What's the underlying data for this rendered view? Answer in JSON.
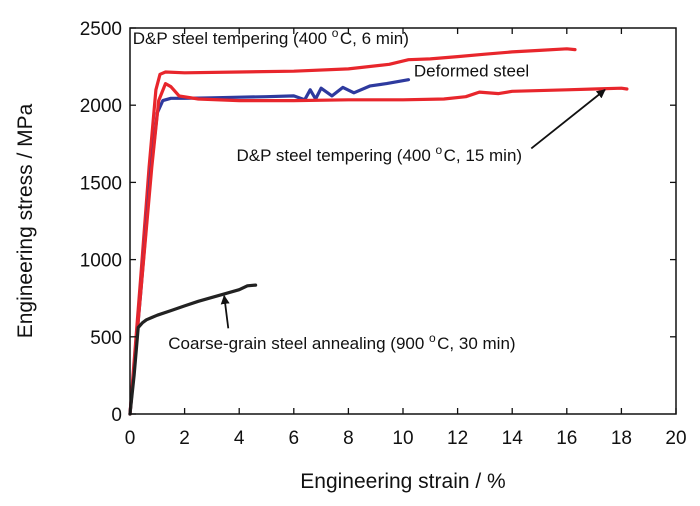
{
  "chart_data": {
    "type": "line",
    "title": "",
    "xlabel": "Engineering strain / %",
    "ylabel": "Engineering stress / MPa",
    "xlim": [
      0,
      20
    ],
    "ylim": [
      0,
      2500
    ],
    "x_ticks": [
      0,
      2,
      4,
      6,
      8,
      10,
      12,
      14,
      16,
      18,
      20
    ],
    "y_ticks": [
      0,
      500,
      1000,
      1500,
      2000,
      2500
    ],
    "grid": false,
    "series": [
      {
        "name": "D&P steel tempering (400 °C, 6 min)",
        "color": "#e8262c",
        "x": [
          0,
          0.4,
          0.7,
          0.95,
          1.1,
          1.3,
          2,
          4,
          6,
          8,
          9.5,
          10.2,
          11,
          12,
          13,
          14,
          15,
          16,
          16.3
        ],
        "y": [
          0,
          900,
          1600,
          2100,
          2200,
          2215,
          2210,
          2215,
          2220,
          2235,
          2265,
          2295,
          2300,
          2315,
          2330,
          2345,
          2355,
          2365,
          2360
        ]
      },
      {
        "name": "Deformed steel",
        "color": "#2e3a9e",
        "x": [
          0,
          0.4,
          0.75,
          1.0,
          1.2,
          1.5,
          2,
          3,
          4,
          5,
          6,
          6.4,
          6.6,
          6.8,
          7.0,
          7.4,
          7.8,
          8.2,
          8.8,
          9.4,
          10.2
        ],
        "y": [
          0,
          800,
          1550,
          1950,
          2030,
          2045,
          2045,
          2048,
          2052,
          2055,
          2060,
          2035,
          2100,
          2040,
          2110,
          2060,
          2115,
          2080,
          2125,
          2140,
          2165
        ]
      },
      {
        "name": "D&P steel tempering (400 °C, 15 min)",
        "color": "#e8262c",
        "x": [
          0,
          0.4,
          0.8,
          1.05,
          1.3,
          1.5,
          1.8,
          2.5,
          4,
          6,
          8,
          10,
          11.5,
          12.3,
          12.8,
          13.5,
          14,
          16,
          17,
          18,
          18.2
        ],
        "y": [
          0,
          800,
          1600,
          2030,
          2140,
          2120,
          2060,
          2040,
          2030,
          2030,
          2035,
          2035,
          2040,
          2055,
          2085,
          2075,
          2090,
          2100,
          2105,
          2110,
          2105
        ]
      },
      {
        "name": "Coarse-grain steel annealing (900 °C, 30 min)",
        "color": "#222222",
        "x": [
          0,
          0.15,
          0.3,
          0.45,
          0.6,
          0.8,
          1,
          1.5,
          2,
          2.5,
          3,
          3.5,
          4,
          4.3,
          4.6
        ],
        "y": [
          0,
          250,
          560,
          590,
          610,
          625,
          640,
          670,
          700,
          730,
          755,
          780,
          805,
          830,
          835
        ]
      }
    ],
    "annotations": [
      {
        "text": "D&P steel tempering (400 °C, 6 min)",
        "x": 0.1,
        "y": 2395
      },
      {
        "text": "Deformed steel",
        "x": 10.4,
        "y": 2185
      },
      {
        "text": "D&P steel tempering (400 °C, 15 min)",
        "x": 3.9,
        "y": 1640
      },
      {
        "text": "Coarse-grain steel annealing (900 °C, 30 min)",
        "x": 1.4,
        "y": 420
      }
    ],
    "arrows": [
      {
        "target": "D&P steel tempering (400 °C, 15 min)",
        "from": [
          14.7,
          1720
        ],
        "to": [
          17.4,
          2100
        ]
      },
      {
        "target": "Coarse-grain steel annealing (900 °C, 30 min)",
        "from": [
          3.6,
          555
        ],
        "to": [
          3.45,
          765
        ]
      }
    ]
  }
}
